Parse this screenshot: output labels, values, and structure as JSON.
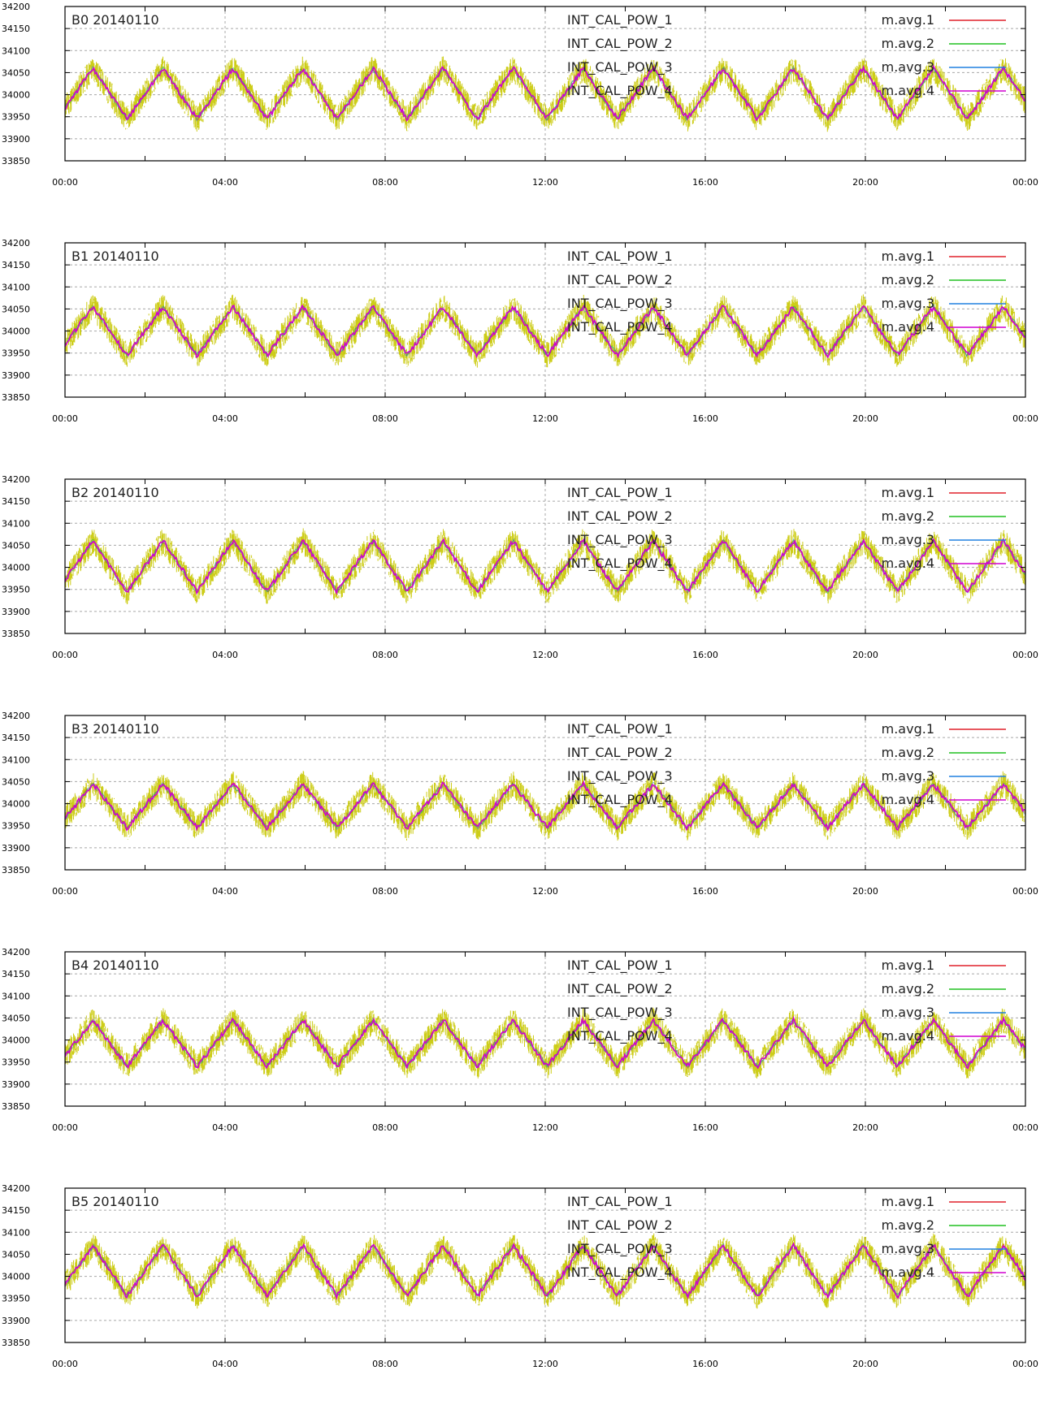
{
  "chart_data": [
    {
      "type": "line",
      "title": "B0 20140110",
      "x_ticks": [
        "00:00",
        "04:00",
        "08:00",
        "12:00",
        "16:00",
        "20:00",
        "00:00"
      ],
      "y_ticks": [
        33850,
        33900,
        33950,
        34000,
        34050,
        34100,
        34150,
        34200
      ],
      "ylim": [
        33850,
        34200
      ],
      "grid": true,
      "legend_placement": "top-right",
      "legend": {
        "left": [
          "INT_CAL_POW_1",
          "INT_CAL_POW_2",
          "INT_CAL_POW_3",
          "INT_CAL_POW_4"
        ],
        "right": [
          "m.avg.1",
          "m.avg.2",
          "m.avg.3",
          "m.avg.4"
        ]
      },
      "series_colors": {
        "raw": "#c8c800",
        "avg": [
          "#e0202a",
          "#20c020",
          "#2080e0",
          "#d000d0"
        ]
      },
      "cycle_hours": 1.75,
      "phase_hours": 0.7,
      "trough_hours": 1.55,
      "peak": 34060,
      "trough": 33945,
      "noise": 30
    },
    {
      "type": "line",
      "title": "B1 20140110",
      "x_ticks": [
        "00:00",
        "04:00",
        "08:00",
        "12:00",
        "16:00",
        "20:00",
        "00:00"
      ],
      "y_ticks": [
        33850,
        33900,
        33950,
        34000,
        34050,
        34100,
        34150,
        34200
      ],
      "ylim": [
        33850,
        34200
      ],
      "grid": true,
      "legend_placement": "top-right",
      "legend": {
        "left": [
          "INT_CAL_POW_1",
          "INT_CAL_POW_2",
          "INT_CAL_POW_3",
          "INT_CAL_POW_4"
        ],
        "right": [
          "m.avg.1",
          "m.avg.2",
          "m.avg.3",
          "m.avg.4"
        ]
      },
      "series_colors": {
        "raw": "#c8c800",
        "avg": [
          "#e0202a",
          "#20c020",
          "#2080e0",
          "#d000d0"
        ]
      },
      "cycle_hours": 1.75,
      "phase_hours": 0.7,
      "trough_hours": 1.55,
      "peak": 34055,
      "trough": 33945,
      "noise": 30
    },
    {
      "type": "line",
      "title": "B2 20140110",
      "x_ticks": [
        "00:00",
        "04:00",
        "08:00",
        "12:00",
        "16:00",
        "20:00",
        "00:00"
      ],
      "y_ticks": [
        33850,
        33900,
        33950,
        34000,
        34050,
        34100,
        34150,
        34200
      ],
      "ylim": [
        33850,
        34200
      ],
      "grid": true,
      "legend_placement": "top-right",
      "legend": {
        "left": [
          "INT_CAL_POW_1",
          "INT_CAL_POW_2",
          "INT_CAL_POW_3",
          "INT_CAL_POW_4"
        ],
        "right": [
          "m.avg.1",
          "m.avg.2",
          "m.avg.3",
          "m.avg.4"
        ]
      },
      "series_colors": {
        "raw": "#c8c800",
        "avg": [
          "#e0202a",
          "#20c020",
          "#2080e0",
          "#d000d0"
        ]
      },
      "cycle_hours": 1.75,
      "phase_hours": 0.7,
      "trough_hours": 1.55,
      "peak": 34060,
      "trough": 33945,
      "noise": 30
    },
    {
      "type": "line",
      "title": "B3 20140110",
      "x_ticks": [
        "00:00",
        "04:00",
        "08:00",
        "12:00",
        "16:00",
        "20:00",
        "00:00"
      ],
      "y_ticks": [
        33850,
        33900,
        33950,
        34000,
        34050,
        34100,
        34150,
        34200
      ],
      "ylim": [
        33850,
        34200
      ],
      "grid": true,
      "legend_placement": "top-right",
      "legend": {
        "left": [
          "INT_CAL_POW_1",
          "INT_CAL_POW_2",
          "INT_CAL_POW_3",
          "INT_CAL_POW_4"
        ],
        "right": [
          "m.avg.1",
          "m.avg.2",
          "m.avg.3",
          "m.avg.4"
        ]
      },
      "series_colors": {
        "raw": "#c8c800",
        "avg": [
          "#e0202a",
          "#20c020",
          "#2080e0",
          "#d000d0"
        ]
      },
      "cycle_hours": 1.75,
      "phase_hours": 0.7,
      "trough_hours": 1.55,
      "peak": 34045,
      "trough": 33945,
      "noise": 30
    },
    {
      "type": "line",
      "title": "B4 20140110",
      "x_ticks": [
        "00:00",
        "04:00",
        "08:00",
        "12:00",
        "16:00",
        "20:00",
        "00:00"
      ],
      "y_ticks": [
        33850,
        33900,
        33950,
        34000,
        34050,
        34100,
        34150,
        34200
      ],
      "ylim": [
        33850,
        34200
      ],
      "grid": true,
      "legend_placement": "top-right",
      "legend": {
        "left": [
          "INT_CAL_POW_1",
          "INT_CAL_POW_2",
          "INT_CAL_POW_3",
          "INT_CAL_POW_4"
        ],
        "right": [
          "m.avg.1",
          "m.avg.2",
          "m.avg.3",
          "m.avg.4"
        ]
      },
      "series_colors": {
        "raw": "#c8c800",
        "avg": [
          "#e0202a",
          "#20c020",
          "#2080e0",
          "#d000d0"
        ]
      },
      "cycle_hours": 1.75,
      "phase_hours": 0.7,
      "trough_hours": 1.55,
      "peak": 34045,
      "trough": 33940,
      "noise": 30
    },
    {
      "type": "line",
      "title": "B5 20140110",
      "x_ticks": [
        "00:00",
        "04:00",
        "08:00",
        "12:00",
        "16:00",
        "20:00",
        "00:00"
      ],
      "y_ticks": [
        33850,
        33900,
        33950,
        34000,
        34050,
        34100,
        34150,
        34200
      ],
      "ylim": [
        33850,
        34200
      ],
      "grid": true,
      "legend_placement": "top-right",
      "legend": {
        "left": [
          "INT_CAL_POW_1",
          "INT_CAL_POW_2",
          "INT_CAL_POW_3",
          "INT_CAL_POW_4"
        ],
        "right": [
          "m.avg.1",
          "m.avg.2",
          "m.avg.3",
          "m.avg.4"
        ]
      },
      "series_colors": {
        "raw": "#c8c800",
        "avg": [
          "#e0202a",
          "#20c020",
          "#2080e0",
          "#d000d0"
        ]
      },
      "cycle_hours": 1.75,
      "phase_hours": 0.7,
      "trough_hours": 1.55,
      "peak": 34070,
      "trough": 33955,
      "noise": 30
    }
  ]
}
